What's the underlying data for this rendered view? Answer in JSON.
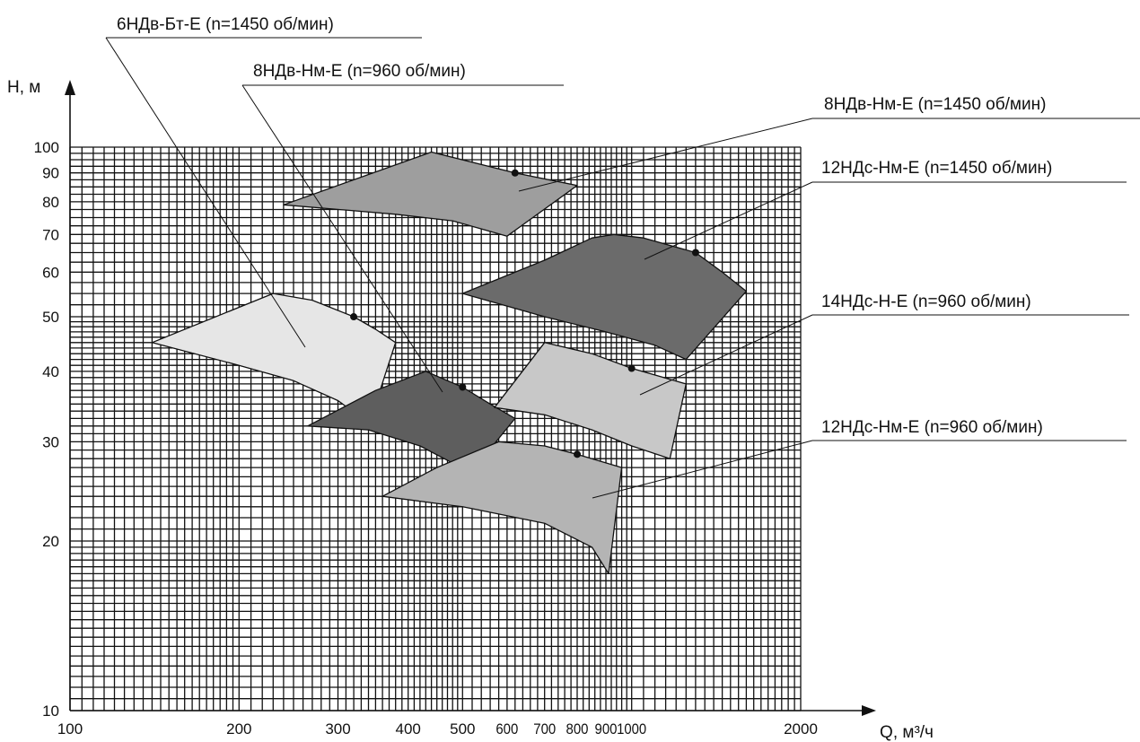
{
  "chart_data": {
    "type": "area",
    "xlabel": "Q, м³/ч",
    "ylabel": "H, м",
    "x_scale": "log",
    "y_scale": "log",
    "xlim": [
      100,
      2000
    ],
    "ylim": [
      10,
      100
    ],
    "grid": true,
    "legend": "labels with leader lines, top and right",
    "x_ticks": [
      "100",
      "200",
      "300",
      "400",
      "500",
      "600",
      "700",
      "800",
      "900",
      "1000",
      "2000"
    ],
    "x_tick_values": [
      100,
      200,
      300,
      400,
      500,
      600,
      700,
      800,
      900,
      1000,
      2000
    ],
    "y_ticks": [
      "10",
      "20",
      "30",
      "40",
      "50",
      "60",
      "70",
      "80",
      "90",
      "100"
    ],
    "y_tick_values": [
      10,
      20,
      30,
      40,
      50,
      60,
      70,
      80,
      90,
      100
    ],
    "series": [
      {
        "name": "6НДв-Бт-Е (n=1450 об/мин)",
        "color": "#e6e6e6",
        "operating_point": [
          320,
          50
        ],
        "outline": [
          [
            140,
            45
          ],
          [
            230,
            55
          ],
          [
            270,
            53.5
          ],
          [
            320,
            50
          ],
          [
            350,
            47.5
          ],
          [
            380,
            45
          ],
          [
            340,
            32
          ],
          [
            325,
            33.5
          ],
          [
            300,
            35.5
          ],
          [
            250,
            38.5
          ],
          [
            200,
            41
          ],
          [
            140,
            45
          ]
        ]
      },
      {
        "name": "8НДв-Нм-Е (n=960 об/мин)",
        "color": "#5e5e5e",
        "operating_point": [
          500,
          37.5
        ],
        "outline": [
          [
            265,
            32
          ],
          [
            350,
            37
          ],
          [
            430,
            40
          ],
          [
            500,
            37.5
          ],
          [
            560,
            35
          ],
          [
            620,
            33
          ],
          [
            510,
            26
          ],
          [
            480,
            27.5
          ],
          [
            420,
            29.5
          ],
          [
            340,
            31.5
          ],
          [
            265,
            32
          ]
        ]
      },
      {
        "name": "8НДв-Нм-Е (n=1450 об/мин)",
        "color": "#9e9e9e",
        "operating_point": [
          620,
          90
        ],
        "outline": [
          [
            240,
            79
          ],
          [
            440,
            98
          ],
          [
            620,
            90
          ],
          [
            800,
            85.5
          ],
          [
            600,
            69.5
          ],
          [
            480,
            74
          ],
          [
            380,
            76
          ],
          [
            240,
            79
          ]
        ]
      },
      {
        "name": "12НДс-Нм-Е (n=1450 об/мин)",
        "color": "#6b6b6b",
        "operating_point": [
          1300,
          65
        ],
        "outline": [
          [
            500,
            55
          ],
          [
            700,
            63
          ],
          [
            850,
            69
          ],
          [
            930,
            70
          ],
          [
            1050,
            69
          ],
          [
            1300,
            65
          ],
          [
            1450,
            60
          ],
          [
            1600,
            55.5
          ],
          [
            1250,
            42
          ],
          [
            1100,
            44.5
          ],
          [
            900,
            47
          ],
          [
            700,
            50
          ],
          [
            500,
            55
          ]
        ]
      },
      {
        "name": "14НДс-Н-Е (n=960 об/мин)",
        "color": "#c8c8c8",
        "operating_point": [
          1000,
          40.5
        ],
        "outline": [
          [
            570,
            34.5
          ],
          [
            700,
            45
          ],
          [
            850,
            43
          ],
          [
            1000,
            40.5
          ],
          [
            1250,
            38
          ],
          [
            1170,
            28
          ],
          [
            1000,
            29.5
          ],
          [
            850,
            31.5
          ],
          [
            700,
            33.5
          ],
          [
            570,
            34.5
          ]
        ]
      },
      {
        "name": "12НДс-Нм-Е (n=960 об/мин)",
        "color": "#b4b4b4",
        "operating_point": [
          800,
          28.5
        ],
        "outline": [
          [
            360,
            24
          ],
          [
            450,
            27
          ],
          [
            580,
            30
          ],
          [
            700,
            29.5
          ],
          [
            800,
            28.5
          ],
          [
            960,
            27
          ],
          [
            910,
            17.5
          ],
          [
            850,
            19.5
          ],
          [
            700,
            21.5
          ],
          [
            500,
            23
          ],
          [
            360,
            24
          ]
        ]
      }
    ]
  }
}
